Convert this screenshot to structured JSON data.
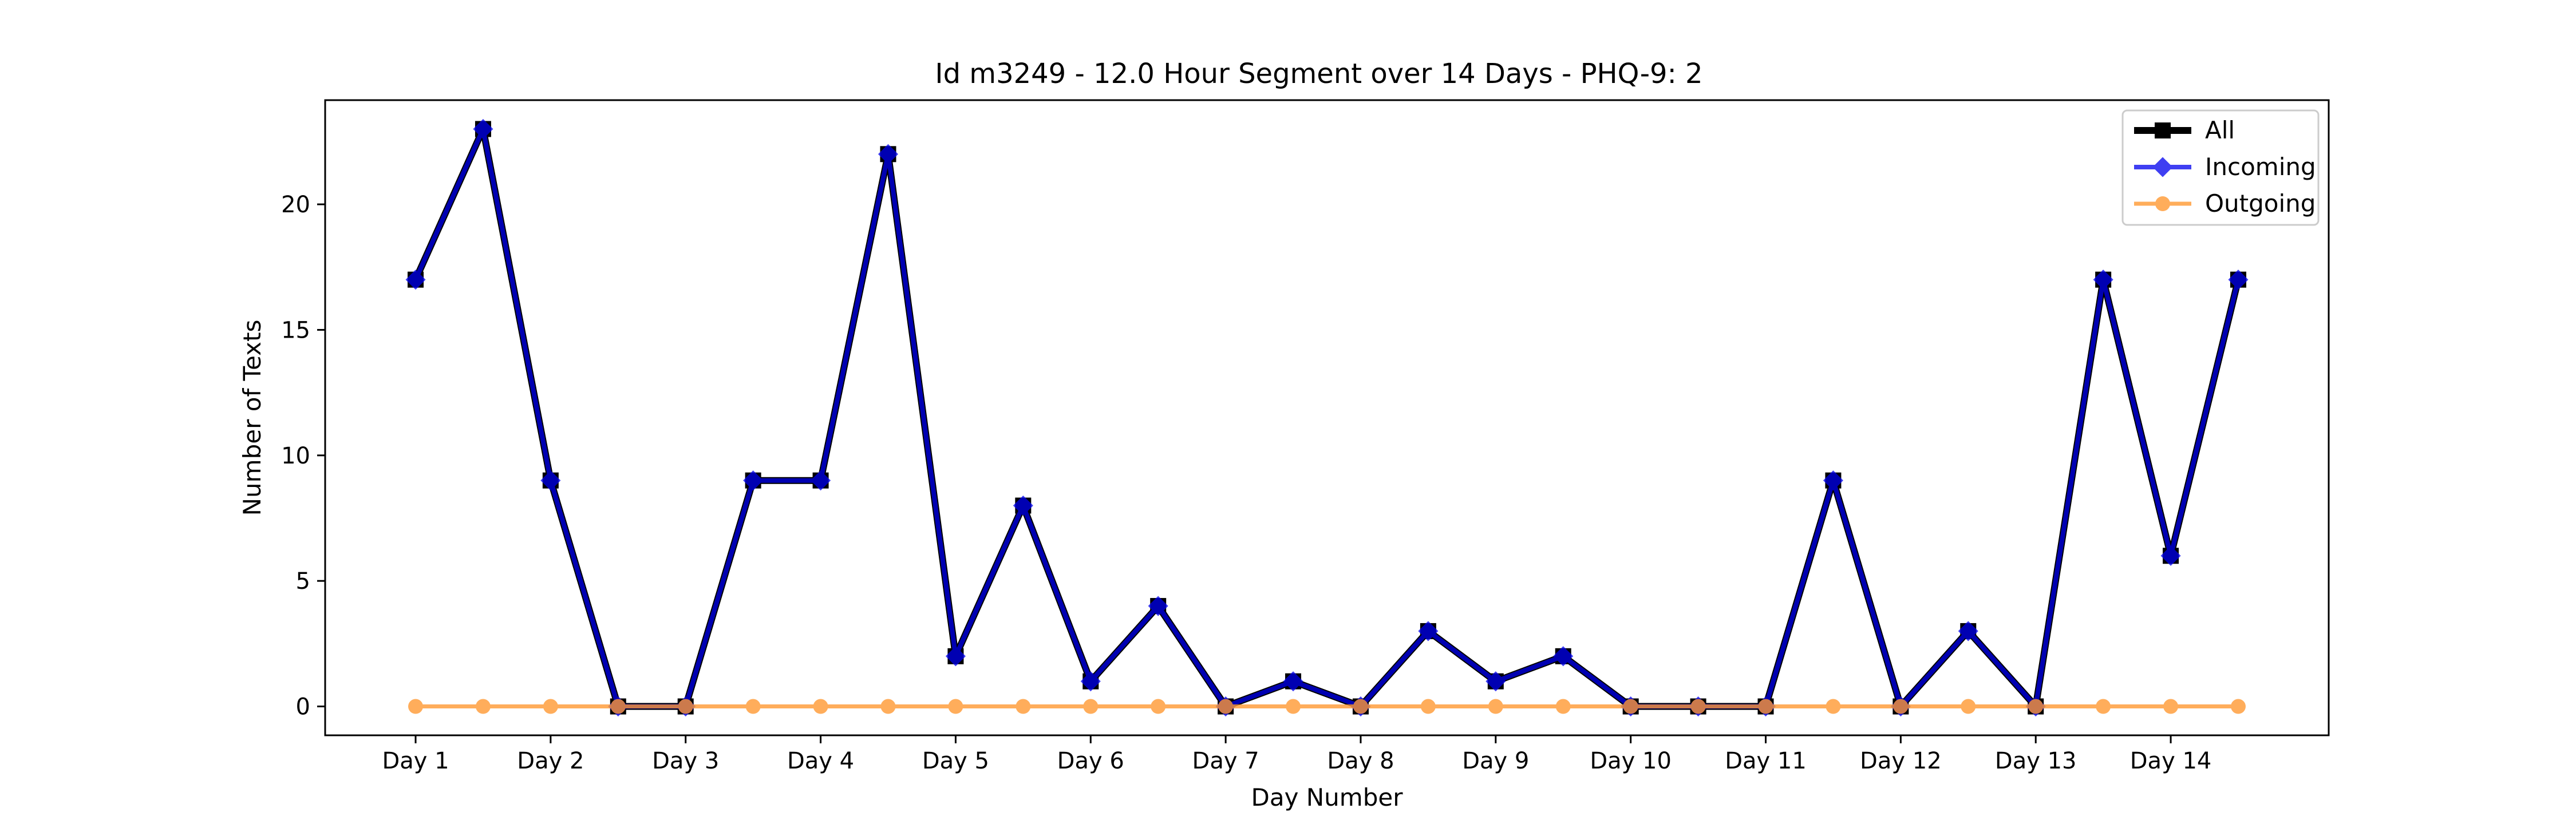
{
  "chart_data": {
    "type": "line",
    "title": "Id m3249 - 12.0 Hour Segment over 14 Days - PHQ-9: 2",
    "xlabel": "Day Number",
    "ylabel": "Number of Texts",
    "x": [
      1,
      1.5,
      2,
      2.5,
      3,
      3.5,
      4,
      4.5,
      5,
      5.5,
      6,
      6.5,
      7,
      7.5,
      8,
      8.5,
      9,
      9.5,
      10,
      10.5,
      11,
      11.5,
      12,
      12.5,
      13,
      13.5,
      14,
      14.5
    ],
    "x_ticks": [
      1,
      2,
      3,
      4,
      5,
      6,
      7,
      8,
      9,
      10,
      11,
      12,
      13,
      14
    ],
    "x_tick_labels": [
      "Day 1",
      "Day 2",
      "Day 3",
      "Day 4",
      "Day 5",
      "Day 6",
      "Day 7",
      "Day 8",
      "Day 9",
      "Day 10",
      "Day 11",
      "Day 12",
      "Day 13",
      "Day 14"
    ],
    "y_ticks": [
      0,
      5,
      10,
      15,
      20
    ],
    "y_tick_labels": [
      "0",
      "5",
      "10",
      "15",
      "20"
    ],
    "xlim": [
      0.33,
      15.17
    ],
    "ylim": [
      -1.15,
      24.15
    ],
    "grid": false,
    "legend_position": "top-right",
    "series": [
      {
        "name": "All",
        "color": "#000000",
        "marker": "square",
        "values": [
          17,
          23,
          9,
          0,
          0,
          9,
          9,
          22,
          2,
          8,
          1,
          4,
          0,
          1,
          0,
          3,
          1,
          2,
          0,
          0,
          0,
          9,
          0,
          3,
          0,
          17,
          6,
          17
        ]
      },
      {
        "name": "Incoming",
        "color": "#0000ee",
        "marker": "diamond",
        "values": [
          17,
          23,
          9,
          0,
          0,
          9,
          9,
          22,
          2,
          8,
          1,
          4,
          0,
          1,
          0,
          3,
          1,
          2,
          0,
          0,
          0,
          9,
          0,
          3,
          0,
          17,
          6,
          17
        ]
      },
      {
        "name": "Outgoing",
        "color": "#ff9933",
        "marker": "circle",
        "values": [
          0,
          0,
          0,
          0,
          0,
          0,
          0,
          0,
          0,
          0,
          0,
          0,
          0,
          0,
          0,
          0,
          0,
          0,
          0,
          0,
          0,
          0,
          0,
          0,
          0,
          0,
          0,
          0
        ]
      }
    ]
  }
}
